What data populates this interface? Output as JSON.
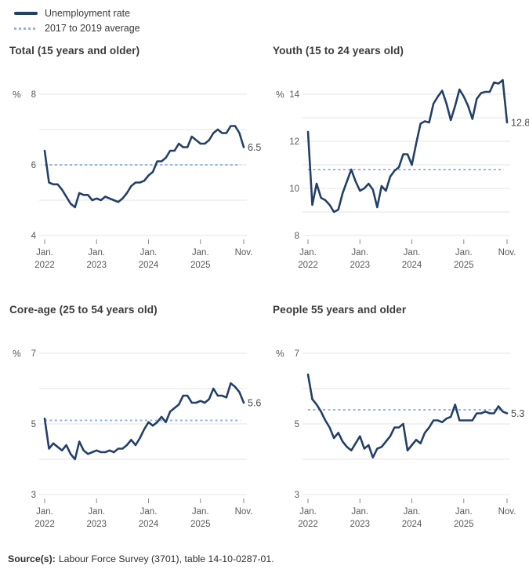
{
  "legend": {
    "items": [
      {
        "label": "Unemployment rate",
        "style": "solid"
      },
      {
        "label": "2017 to 2019 average",
        "style": "dashed"
      }
    ]
  },
  "colors": {
    "line": "#234068",
    "average": "#95b3e2",
    "grid": "#e6e6e6",
    "tick": "#8a8a8a",
    "tick_text": "#595959",
    "end_label_text": "#4a4a4a"
  },
  "x_axis": {
    "months_total": 46,
    "ticks": [
      {
        "month": 0,
        "line1": "Jan.",
        "line2": "2022"
      },
      {
        "month": 12,
        "line1": "Jan.",
        "line2": "2023"
      },
      {
        "month": 24,
        "line1": "Jan.",
        "line2": "2024"
      },
      {
        "month": 36,
        "line1": "Jan.",
        "line2": "2025"
      },
      {
        "month": 46,
        "line1": "Nov.",
        "line2": ""
      }
    ]
  },
  "chart_data": [
    {
      "type": "line",
      "title": "Total (15 years and older)",
      "ylabel": "%",
      "x_start": "Jan. 2022",
      "x_end": "Nov. 2025",
      "x_frequency": "monthly",
      "ylim": [
        4,
        8
      ],
      "yticks_labeled": [
        4,
        6,
        8
      ],
      "grid": true,
      "average_2017_2019": 6.0,
      "end_label": "6.5",
      "values": [
        6.4,
        5.5,
        5.45,
        5.45,
        5.3,
        5.1,
        4.9,
        4.8,
        5.2,
        5.15,
        5.15,
        5.0,
        5.05,
        5.0,
        5.1,
        5.05,
        5.0,
        4.95,
        5.05,
        5.2,
        5.4,
        5.5,
        5.5,
        5.55,
        5.7,
        5.8,
        6.1,
        6.1,
        6.2,
        6.4,
        6.4,
        6.6,
        6.5,
        6.5,
        6.8,
        6.7,
        6.6,
        6.6,
        6.7,
        6.9,
        7.0,
        6.9,
        6.9,
        7.1,
        7.1,
        6.9,
        6.5
      ]
    },
    {
      "type": "line",
      "title": "Youth (15 to 24 years old)",
      "ylabel": "%",
      "x_start": "Jan. 2022",
      "x_end": "Nov. 2025",
      "x_frequency": "monthly",
      "ylim": [
        8,
        14
      ],
      "yticks_labeled": [
        8,
        10,
        12,
        14
      ],
      "grid": true,
      "average_2017_2019": 10.8,
      "end_label": "12.8",
      "values": [
        12.4,
        9.3,
        10.2,
        9.6,
        9.5,
        9.3,
        9.0,
        9.1,
        9.8,
        10.3,
        10.8,
        10.3,
        9.9,
        10.0,
        10.2,
        9.95,
        9.2,
        10.1,
        9.9,
        10.5,
        10.75,
        10.9,
        11.45,
        11.45,
        11.0,
        11.9,
        12.75,
        12.85,
        12.8,
        13.6,
        13.9,
        14.15,
        13.6,
        12.9,
        13.5,
        14.2,
        13.9,
        13.5,
        12.95,
        13.8,
        14.05,
        14.1,
        14.1,
        14.5,
        14.45,
        14.6,
        12.8
      ]
    },
    {
      "type": "line",
      "title": "Core-age (25 to 54 years old)",
      "ylabel": "%",
      "x_start": "Jan. 2022",
      "x_end": "Nov. 2025",
      "x_frequency": "monthly",
      "ylim": [
        3,
        7
      ],
      "yticks_labeled": [
        3,
        5,
        7
      ],
      "grid": true,
      "average_2017_2019": 5.1,
      "end_label": "5.6",
      "values": [
        5.15,
        4.3,
        4.45,
        4.35,
        4.25,
        4.4,
        4.15,
        4.0,
        4.5,
        4.25,
        4.15,
        4.2,
        4.25,
        4.2,
        4.2,
        4.25,
        4.2,
        4.3,
        4.3,
        4.4,
        4.55,
        4.4,
        4.6,
        4.85,
        5.05,
        4.95,
        5.05,
        5.2,
        5.05,
        5.35,
        5.45,
        5.55,
        5.8,
        5.8,
        5.6,
        5.6,
        5.65,
        5.6,
        5.7,
        6.0,
        5.8,
        5.8,
        5.75,
        6.15,
        6.05,
        5.9,
        5.6
      ]
    },
    {
      "type": "line",
      "title": "People 55 years and older",
      "ylabel": "%",
      "x_start": "Jan. 2022",
      "x_end": "Nov. 2025",
      "x_frequency": "monthly",
      "ylim": [
        3,
        7
      ],
      "yticks_labeled": [
        3,
        5,
        7
      ],
      "grid": true,
      "average_2017_2019": 5.4,
      "end_label": "5.3",
      "values": [
        6.4,
        5.7,
        5.55,
        5.35,
        5.1,
        4.9,
        4.6,
        4.75,
        4.5,
        4.35,
        4.25,
        4.45,
        4.65,
        4.3,
        4.4,
        4.05,
        4.3,
        4.35,
        4.5,
        4.65,
        4.9,
        4.9,
        5.0,
        4.25,
        4.4,
        4.55,
        4.45,
        4.75,
        4.9,
        5.1,
        5.1,
        5.05,
        5.15,
        5.2,
        5.55,
        5.1,
        5.1,
        5.1,
        5.1,
        5.3,
        5.3,
        5.35,
        5.3,
        5.3,
        5.5,
        5.35,
        5.3
      ]
    }
  ],
  "source": {
    "label": "Source(s):",
    "text": "Labour Force Survey (3701), table 14-10-0287-01."
  }
}
